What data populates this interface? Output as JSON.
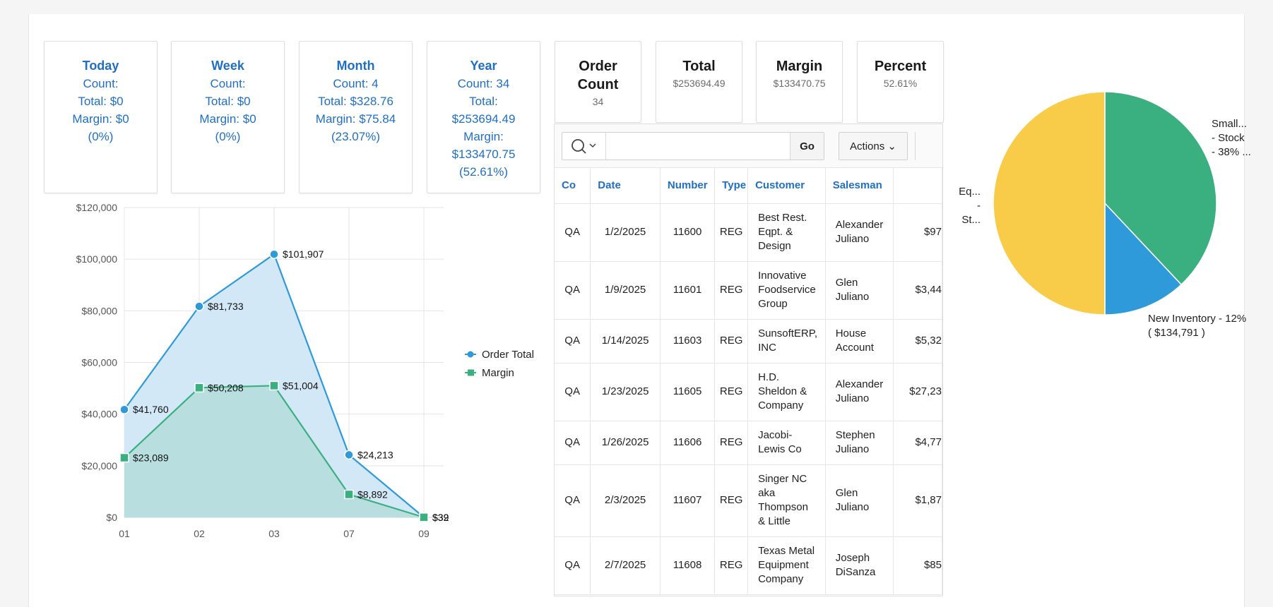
{
  "periods": [
    {
      "title": "Today",
      "lines": [
        "Count:",
        "Total: $0",
        "Margin: $0",
        "(0%)"
      ]
    },
    {
      "title": "Week",
      "lines": [
        "Count:",
        "Total: $0",
        "Margin: $0",
        "(0%)"
      ]
    },
    {
      "title": "Month",
      "lines": [
        "Count: 4",
        "Total: $328.76",
        "Margin: $75.84",
        "(23.07%)"
      ]
    },
    {
      "title": "Year",
      "lines": [
        "Count: 34",
        "Total:",
        "$253694.49",
        "Margin:",
        "$133470.75",
        "(52.61%)"
      ]
    }
  ],
  "kpis": [
    {
      "title_line1": "Order",
      "title_line2": "Count",
      "value": "34"
    },
    {
      "title_line1": "Total",
      "title_line2": "",
      "value": "$253694.49"
    },
    {
      "title_line1": "Margin",
      "title_line2": "",
      "value": "$133470.75"
    },
    {
      "title_line1": "Percent",
      "title_line2": "",
      "value": "52.61%"
    }
  ],
  "toolbar": {
    "search_placeholder": "",
    "go_label": "Go",
    "actions_label": "Actions"
  },
  "table": {
    "columns": [
      "Co",
      "Date",
      "Number",
      "Type",
      "Customer",
      "Salesman",
      ""
    ],
    "rows": [
      {
        "co": "QA",
        "date": "1/2/2025",
        "number": "11600",
        "type": "REG",
        "customer": [
          "Best Rest.",
          "Eqpt. &",
          "Design"
        ],
        "salesman": [
          "Alexander",
          "Juliano"
        ],
        "amount": "$97"
      },
      {
        "co": "QA",
        "date": "1/9/2025",
        "number": "11601",
        "type": "REG",
        "customer": [
          "Innovative",
          "Foodservice",
          "Group"
        ],
        "salesman": [
          "Glen",
          "Juliano"
        ],
        "amount": "$3,44"
      },
      {
        "co": "QA",
        "date": "1/14/2025",
        "number": "11603",
        "type": "REG",
        "customer": [
          "SunsoftERP,",
          "INC"
        ],
        "salesman": [
          "House",
          "Account"
        ],
        "amount": "$5,32"
      },
      {
        "co": "QA",
        "date": "1/23/2025",
        "number": "11605",
        "type": "REG",
        "customer": [
          "H.D.",
          "Sheldon &",
          "Company"
        ],
        "salesman": [
          "Alexander",
          "Juliano"
        ],
        "amount": "$27,23"
      },
      {
        "co": "QA",
        "date": "1/26/2025",
        "number": "11606",
        "type": "REG",
        "customer": [
          "Jacobi-",
          "Lewis Co"
        ],
        "salesman": [
          "Stephen",
          "Juliano"
        ],
        "amount": "$4,77"
      },
      {
        "co": "QA",
        "date": "2/3/2025",
        "number": "11607",
        "type": "REG",
        "customer": [
          "Singer NC",
          "aka",
          "Thompson",
          "& Little"
        ],
        "salesman": [
          "Glen",
          "Juliano"
        ],
        "amount": "$1,87"
      },
      {
        "co": "QA",
        "date": "2/7/2025",
        "number": "11608",
        "type": "REG",
        "customer": [
          "Texas Metal",
          "Equipment",
          "Company"
        ],
        "salesman": [
          "Joseph",
          "DiSanza"
        ],
        "amount": "$85"
      }
    ]
  },
  "chart_data": [
    {
      "type": "area",
      "categories": [
        "01",
        "02",
        "03",
        "07",
        "09"
      ],
      "series": [
        {
          "name": "Order Total",
          "values": [
            41760,
            81733,
            101907,
            24213,
            39
          ],
          "labels": [
            "$41,760",
            "$81,733",
            "$101,907",
            "$24,213",
            "$39"
          ],
          "color": "#2e9ad9",
          "fill": "#d3e8f7"
        },
        {
          "name": "Margin",
          "values": [
            23089,
            50208,
            51004,
            8892,
            32
          ],
          "labels": [
            "$23,089",
            "$50,208",
            "$51,004",
            "$8,892",
            "$32"
          ],
          "color": "#3aaf7f",
          "fill": "#b4dcdb"
        }
      ],
      "yticks": [
        "$0",
        "$20,000",
        "$40,000",
        "$60,000",
        "$80,000",
        "$100,000",
        "$120,000"
      ],
      "ylim": [
        0,
        120000
      ],
      "grid": true,
      "legend": "right"
    },
    {
      "type": "pie",
      "slices": [
        {
          "label_lines": [
            "Small...",
            "- Stock",
            "- 38% ..."
          ],
          "value": 38,
          "color": "#3aaf7f"
        },
        {
          "label_lines": [
            "New Inventory - 12%",
            "( $134,791 )"
          ],
          "value": 12,
          "color": "#2e9ad9"
        },
        {
          "label_lines": [
            "Eq...",
            "-",
            "St..."
          ],
          "value": 50,
          "color": "#f8cc48"
        }
      ]
    }
  ]
}
